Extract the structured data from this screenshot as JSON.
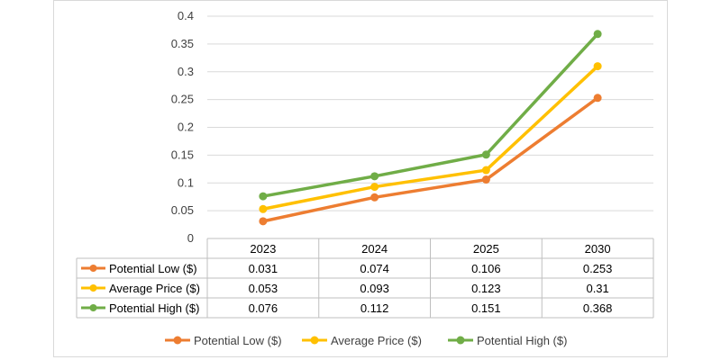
{
  "chart_data": {
    "type": "line",
    "title": "",
    "xlabel": "",
    "ylabel": "",
    "categories": [
      "2023",
      "2024",
      "2025",
      "2030"
    ],
    "ylim": [
      0,
      0.4
    ],
    "yticks": [
      "0",
      "0.05",
      "0.1",
      "0.15",
      "0.2",
      "0.25",
      "0.3",
      "0.35",
      "0.4"
    ],
    "grid": true,
    "legend_position": "bottom",
    "data_table": true,
    "series": [
      {
        "name": "Potential Low ($)",
        "color": "#ed7d31",
        "values": [
          0.031,
          0.074,
          0.106,
          0.253
        ],
        "labels": [
          "0.031",
          "0.074",
          "0.106",
          "0.253"
        ]
      },
      {
        "name": "Average Price ($)",
        "color": "#ffc000",
        "values": [
          0.053,
          0.093,
          0.123,
          0.31
        ],
        "labels": [
          "0.053",
          "0.093",
          "0.123",
          "0.31"
        ]
      },
      {
        "name": "Potential High ($)",
        "color": "#70ad47",
        "values": [
          0.076,
          0.112,
          0.151,
          0.368
        ],
        "labels": [
          "0.076",
          "0.112",
          "0.151",
          "0.368"
        ]
      }
    ]
  }
}
